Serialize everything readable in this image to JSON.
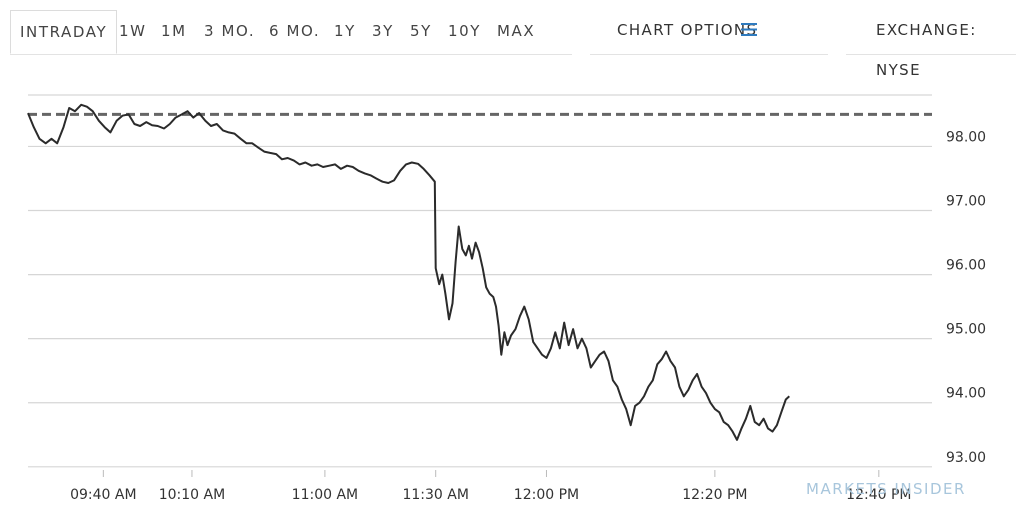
{
  "tabs": [
    "INTRADAY",
    "1W",
    "1M",
    "3 MO.",
    "6 MO.",
    "1Y",
    "3Y",
    "5Y",
    "10Y",
    "MAX"
  ],
  "active_tab": "INTRADAY",
  "chart_options_label": "CHART OPTIONS",
  "exchange_label": "EXCHANGE: NYSE",
  "watermark": "MARKETS INSIDER",
  "colors": {
    "line": "#2b2b2b",
    "reference_line": "#666666",
    "grid": "#d6d6d6",
    "axis_text": "#333333",
    "menu_icon": "#2f7bbf",
    "watermark": "#a8c6dc"
  },
  "chart_data": {
    "type": "line",
    "title": "",
    "xlabel": "",
    "ylabel": "",
    "ylim": [
      92.95,
      98.85
    ],
    "xlim_minutes": [
      563,
      767
    ],
    "yticks": [
      93,
      94,
      95,
      96,
      97,
      98
    ],
    "ytick_labels": [
      "93.00",
      "94.00",
      "95.00",
      "96.00",
      "97.00",
      "98.00"
    ],
    "xticks": [
      {
        "label": "09:40 AM",
        "minutes": 580
      },
      {
        "label": "10:10 AM",
        "minutes": 600
      },
      {
        "label": "11:00 AM",
        "minutes": 630
      },
      {
        "label": "11:30 AM",
        "minutes": 655
      },
      {
        "label": "12:00 PM",
        "minutes": 680
      },
      {
        "label": "12:20 PM",
        "minutes": 718
      },
      {
        "label": "12:40 PM",
        "minutes": 755
      }
    ],
    "reference_line": {
      "value": 98.5,
      "style": "dashed"
    },
    "grid": true,
    "series": [
      {
        "points": [
          [
            563.0,
            98.52
          ],
          [
            564.3,
            98.3
          ],
          [
            565.6,
            98.12
          ],
          [
            567.0,
            98.05
          ],
          [
            568.3,
            98.12
          ],
          [
            569.6,
            98.05
          ],
          [
            571.0,
            98.3
          ],
          [
            572.3,
            98.6
          ],
          [
            573.6,
            98.55
          ],
          [
            575.0,
            98.65
          ],
          [
            576.3,
            98.62
          ],
          [
            577.6,
            98.55
          ],
          [
            579.0,
            98.4
          ],
          [
            580.3,
            98.3
          ],
          [
            581.6,
            98.22
          ],
          [
            583.0,
            98.4
          ],
          [
            584.3,
            98.48
          ],
          [
            585.7,
            98.5
          ],
          [
            587.0,
            98.35
          ],
          [
            588.3,
            98.32
          ],
          [
            589.7,
            98.38
          ],
          [
            591.0,
            98.33
          ],
          [
            592.3,
            98.32
          ],
          [
            593.7,
            98.28
          ],
          [
            595.0,
            98.35
          ],
          [
            596.3,
            98.45
          ],
          [
            597.7,
            98.5
          ],
          [
            599.0,
            98.55
          ],
          [
            600.3,
            98.45
          ],
          [
            601.6,
            98.52
          ],
          [
            603.0,
            98.4
          ],
          [
            604.3,
            98.32
          ],
          [
            605.6,
            98.35
          ],
          [
            607.0,
            98.25
          ],
          [
            608.3,
            98.22
          ],
          [
            609.6,
            98.2
          ],
          [
            611.0,
            98.12
          ],
          [
            612.3,
            98.05
          ],
          [
            613.6,
            98.05
          ],
          [
            615.0,
            97.98
          ],
          [
            616.3,
            97.92
          ],
          [
            617.6,
            97.9
          ],
          [
            619.0,
            97.88
          ],
          [
            620.3,
            97.8
          ],
          [
            621.6,
            97.82
          ],
          [
            623.0,
            97.78
          ],
          [
            624.3,
            97.72
          ],
          [
            625.6,
            97.75
          ],
          [
            627.0,
            97.7
          ],
          [
            628.3,
            97.72
          ],
          [
            629.6,
            97.68
          ],
          [
            631.0,
            97.7
          ],
          [
            632.3,
            97.72
          ],
          [
            633.6,
            97.65
          ],
          [
            635.0,
            97.7
          ],
          [
            636.3,
            97.68
          ],
          [
            637.6,
            97.62
          ],
          [
            639.0,
            97.58
          ],
          [
            640.3,
            97.55
          ],
          [
            641.6,
            97.5
          ],
          [
            643.0,
            97.45
          ],
          [
            644.3,
            97.43
          ],
          [
            645.6,
            97.47
          ],
          [
            647.0,
            97.62
          ],
          [
            648.3,
            97.72
          ],
          [
            649.6,
            97.75
          ],
          [
            651.0,
            97.73
          ],
          [
            652.3,
            97.65
          ],
          [
            653.6,
            97.55
          ],
          [
            654.8,
            97.45
          ],
          [
            655.0,
            96.1
          ],
          [
            655.8,
            95.85
          ],
          [
            656.5,
            96.0
          ],
          [
            657.2,
            95.7
          ],
          [
            658.0,
            95.3
          ],
          [
            658.8,
            95.55
          ],
          [
            659.5,
            96.2
          ],
          [
            660.2,
            96.75
          ],
          [
            661.0,
            96.4
          ],
          [
            661.8,
            96.3
          ],
          [
            662.5,
            96.45
          ],
          [
            663.2,
            96.25
          ],
          [
            664.0,
            96.5
          ],
          [
            664.8,
            96.35
          ],
          [
            665.6,
            96.1
          ],
          [
            666.4,
            95.8
          ],
          [
            667.2,
            95.7
          ],
          [
            668.0,
            95.65
          ],
          [
            668.6,
            95.5
          ],
          [
            669.2,
            95.2
          ],
          [
            669.8,
            94.75
          ],
          [
            670.5,
            95.1
          ],
          [
            671.2,
            94.9
          ],
          [
            672.0,
            95.05
          ],
          [
            673.0,
            95.15
          ],
          [
            674.0,
            95.35
          ],
          [
            675.0,
            95.5
          ],
          [
            676.0,
            95.3
          ],
          [
            677.0,
            94.95
          ],
          [
            678.0,
            94.85
          ],
          [
            679.0,
            94.75
          ],
          [
            680.0,
            94.7
          ],
          [
            681.0,
            94.85
          ],
          [
            682.0,
            95.1
          ],
          [
            683.0,
            94.85
          ],
          [
            684.0,
            95.25
          ],
          [
            685.0,
            94.9
          ],
          [
            686.0,
            95.15
          ],
          [
            687.0,
            94.85
          ],
          [
            688.0,
            95.0
          ],
          [
            689.0,
            94.85
          ],
          [
            690.0,
            94.55
          ],
          [
            691.0,
            94.65
          ],
          [
            692.0,
            94.75
          ],
          [
            693.0,
            94.8
          ],
          [
            694.0,
            94.65
          ],
          [
            695.0,
            94.35
          ],
          [
            696.0,
            94.25
          ],
          [
            697.0,
            94.05
          ],
          [
            698.0,
            93.9
          ],
          [
            699.0,
            93.65
          ],
          [
            700.0,
            93.95
          ],
          [
            701.0,
            94.0
          ],
          [
            702.0,
            94.1
          ],
          [
            703.0,
            94.25
          ],
          [
            704.0,
            94.35
          ],
          [
            705.0,
            94.6
          ],
          [
            706.0,
            94.68
          ],
          [
            707.0,
            94.8
          ],
          [
            708.0,
            94.65
          ],
          [
            709.0,
            94.55
          ],
          [
            710.0,
            94.25
          ],
          [
            711.0,
            94.1
          ],
          [
            712.0,
            94.2
          ],
          [
            713.0,
            94.35
          ],
          [
            714.0,
            94.45
          ],
          [
            715.0,
            94.25
          ],
          [
            716.0,
            94.15
          ],
          [
            717.0,
            94.0
          ],
          [
            718.0,
            93.9
          ],
          [
            719.0,
            93.85
          ],
          [
            720.0,
            93.7
          ],
          [
            721.0,
            93.65
          ],
          [
            722.0,
            93.55
          ],
          [
            723.0,
            93.42
          ],
          [
            724.0,
            93.6
          ],
          [
            725.0,
            93.75
          ],
          [
            726.0,
            93.95
          ],
          [
            727.0,
            93.7
          ],
          [
            728.0,
            93.65
          ],
          [
            729.0,
            93.75
          ],
          [
            730.0,
            93.6
          ],
          [
            731.0,
            93.55
          ],
          [
            732.0,
            93.65
          ],
          [
            733.0,
            93.85
          ],
          [
            734.0,
            94.05
          ],
          [
            734.8,
            94.1
          ]
        ]
      }
    ]
  }
}
